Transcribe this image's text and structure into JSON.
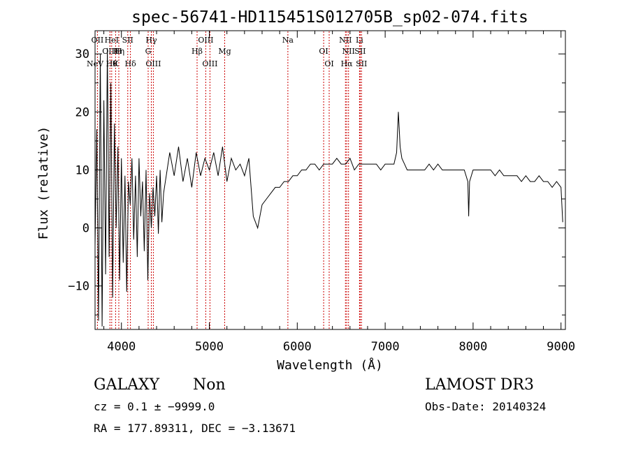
{
  "chart_data": {
    "type": "line",
    "title": "spec-56741-HD115451S012705B_sp02-074.fits",
    "xlabel": "Wavelength (Å)",
    "ylabel": "Flux (relative)",
    "xlim": [
      3700,
      9050
    ],
    "ylim": [
      -17.5,
      34
    ],
    "xticks": [
      4000,
      5000,
      6000,
      7000,
      8000,
      9000
    ],
    "xtick_labels": [
      "4000",
      "5000",
      "6000",
      "7000",
      "8000",
      "9000"
    ],
    "yticks": [
      -10,
      0,
      10,
      20,
      30
    ],
    "ytick_labels": [
      "−10",
      "0",
      "10",
      "20",
      "30"
    ],
    "grid": false,
    "line_color": "#000000",
    "marker_color": "#cc0000",
    "series": [
      {
        "name": "flux",
        "x": [
          3700,
          3720,
          3740,
          3760,
          3780,
          3800,
          3820,
          3840,
          3860,
          3880,
          3900,
          3920,
          3940,
          3960,
          3980,
          4000,
          4020,
          4040,
          4060,
          4080,
          4100,
          4120,
          4140,
          4160,
          4180,
          4200,
          4220,
          4240,
          4260,
          4280,
          4300,
          4320,
          4340,
          4360,
          4380,
          4400,
          4420,
          4440,
          4460,
          4480,
          4500,
          4550,
          4600,
          4650,
          4700,
          4750,
          4800,
          4850,
          4900,
          4950,
          5000,
          5050,
          5100,
          5150,
          5200,
          5250,
          5300,
          5350,
          5400,
          5450,
          5500,
          5550,
          5600,
          5650,
          5700,
          5750,
          5800,
          5850,
          5900,
          5950,
          6000,
          6050,
          6100,
          6150,
          6200,
          6250,
          6300,
          6350,
          6400,
          6450,
          6500,
          6550,
          6600,
          6650,
          6700,
          6750,
          6800,
          6850,
          6900,
          6950,
          7000,
          7050,
          7100,
          7130,
          7150,
          7170,
          7190,
          7220,
          7250,
          7300,
          7350,
          7400,
          7450,
          7500,
          7550,
          7600,
          7650,
          7700,
          7750,
          7800,
          7850,
          7900,
          7940,
          7950,
          7960,
          8000,
          8050,
          8100,
          8150,
          8200,
          8250,
          8300,
          8350,
          8400,
          8450,
          8500,
          8550,
          8600,
          8650,
          8700,
          8750,
          8800,
          8850,
          8900,
          8950,
          9000,
          9020
        ],
        "y": [
          -3,
          17,
          -16,
          30,
          -17,
          22,
          -8,
          31,
          -5,
          25,
          -12,
          18,
          0,
          14,
          -9,
          12,
          -6,
          9,
          -11,
          8,
          4,
          12,
          -2,
          9,
          -5,
          12,
          2,
          8,
          -4,
          10,
          -9,
          6,
          0,
          7,
          2,
          9,
          -1,
          10,
          1,
          6,
          8,
          13,
          9,
          14,
          8,
          12,
          7,
          13,
          9,
          12,
          10,
          13,
          9,
          14,
          8,
          12,
          10,
          11,
          9,
          12,
          2,
          0,
          4,
          5,
          6,
          7,
          7,
          8,
          8,
          9,
          9,
          10,
          10,
          11,
          11,
          10,
          11,
          11,
          11,
          12,
          11,
          11,
          12,
          10,
          11,
          11,
          11,
          11,
          11,
          10,
          11,
          11,
          11,
          13,
          20,
          14,
          12,
          11,
          10,
          10,
          10,
          10,
          10,
          11,
          10,
          11,
          10,
          10,
          10,
          10,
          10,
          10,
          8,
          2,
          8,
          10,
          10,
          10,
          10,
          10,
          9,
          10,
          9,
          9,
          9,
          9,
          8,
          9,
          8,
          8,
          9,
          8,
          8,
          7,
          8,
          7,
          1
        ]
      }
    ],
    "line_markers": [
      {
        "label": "NeV",
        "x": 3426,
        "row": 4
      },
      {
        "label": "OII",
        "x": 3727,
        "row": 1
      },
      {
        "label": "OIII",
        "x": 3869,
        "row": 2
      },
      {
        "label": "Hθ",
        "x": 3889,
        "row": 3
      },
      {
        "label": "HeI",
        "x": 3889,
        "row": 1
      },
      {
        "label": "Hη",
        "x": 3970,
        "row": 2
      },
      {
        "label": "K",
        "x": 3934,
        "row": 3
      },
      {
        "label": "H",
        "x": 3968,
        "row": 2
      },
      {
        "label": "SII",
        "x": 4072,
        "row": 1
      },
      {
        "label": "Hδ",
        "x": 4102,
        "row": 3
      },
      {
        "label": "Hγ",
        "x": 4340,
        "row": 1
      },
      {
        "label": "G",
        "x": 4304,
        "row": 2
      },
      {
        "label": "OIII",
        "x": 4363,
        "row": 3
      },
      {
        "label": "Hβ",
        "x": 4861,
        "row": 2
      },
      {
        "label": "OIII",
        "x": 4959,
        "row": 1
      },
      {
        "label": "OIII",
        "x": 5007,
        "row": 3
      },
      {
        "label": "Mg",
        "x": 5175,
        "row": 2
      },
      {
        "label": "Na",
        "x": 5893,
        "row": 1
      },
      {
        "label": "OI",
        "x": 6300,
        "row": 2
      },
      {
        "label": "OI",
        "x": 6363,
        "row": 3
      },
      {
        "label": "NII",
        "x": 6548,
        "row": 1
      },
      {
        "label": "NII",
        "x": 6583,
        "row": 2
      },
      {
        "label": "Hα",
        "x": 6563,
        "row": 3
      },
      {
        "label": "Li",
        "x": 6708,
        "row": 1
      },
      {
        "label": "SII",
        "x": 6716,
        "row": 2
      },
      {
        "label": "SII",
        "x": 6731,
        "row": 3
      }
    ]
  },
  "info": {
    "object_class": "GALAXY",
    "subclass": "Non",
    "survey": "LAMOST DR3",
    "redshift": "cz = 0.1 ± −9999.0",
    "obs_date": "Obs-Date: 20140324",
    "coords": "RA = 177.89311, DEC =  −3.13671"
  }
}
